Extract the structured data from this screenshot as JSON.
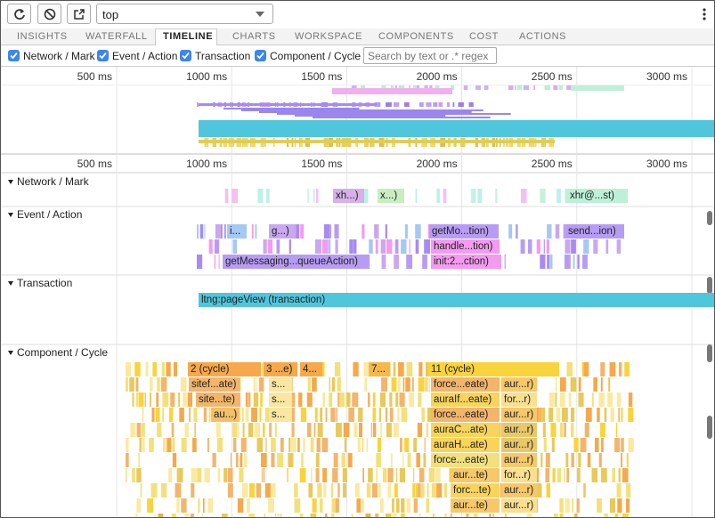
{
  "toolbar": {
    "frame_select": "top"
  },
  "tabs": [
    "INSIGHTS",
    "WATERFALL",
    "TIMELINE",
    "CHARTS",
    "WORKSPACE",
    "COMPONENTS",
    "COST",
    "ACTIONS"
  ],
  "active_tab": "TIMELINE",
  "filters": [
    "Network / Mark",
    "Event / Action",
    "Transaction",
    "Component / Cycle"
  ],
  "search_placeholder": "Search by text or .* regex",
  "ruler": [
    "500 ms",
    "1000 ms",
    "1500 ms",
    "2000 ms",
    "2500 ms",
    "3000 ms"
  ],
  "sections": [
    {
      "title": "Network / Mark",
      "blocks": [
        "xh...)",
        "x...)",
        "xhr@...st)"
      ]
    },
    {
      "title": "Event / Action",
      "blocks": [
        "i...",
        "g...)",
        "getMo...tion)",
        "send...ion)",
        "handle...tion)",
        "getMessaging...queueAction)",
        "init:2...ction)"
      ]
    },
    {
      "title": "Transaction",
      "blocks": [
        "ltng:pageView (transaction)"
      ]
    },
    {
      "title": "Component / Cycle",
      "blocks": [
        "2 (cycle)",
        "3 ...e)",
        "4...",
        "7...",
        "11 (cycle)",
        "sitef...ate)",
        "site...te)",
        "au...)",
        "s...",
        "s...",
        "s...",
        "force...eate)",
        "aur...r)",
        "auraIf...eate)",
        "for...r)",
        "force...eate)",
        "aur...r)",
        "auraC...ate)",
        "aur...r)",
        "auraH...ate)",
        "aur...r)",
        "force...eate)",
        "aur...r)",
        "aur...te)",
        "for...r)",
        "forc...te)",
        "aur...r)",
        "aur...te)",
        "aur...r)"
      ]
    }
  ]
}
